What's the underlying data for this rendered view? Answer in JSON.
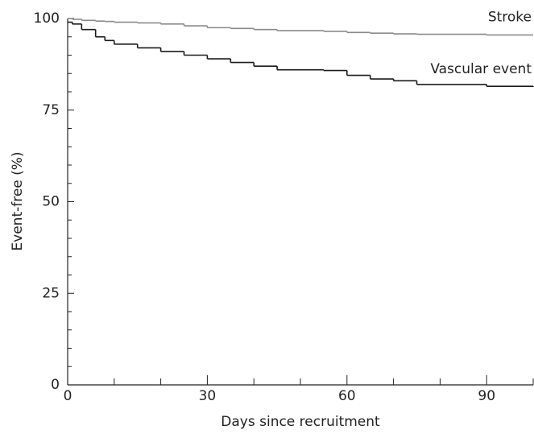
{
  "chart_data": {
    "type": "line",
    "drawstyle": "steps-post",
    "xlabel": "Days since recruitment",
    "ylabel": "Event-free (%)",
    "x": [
      0,
      1,
      3,
      6,
      8,
      10,
      15,
      20,
      25,
      30,
      35,
      40,
      45,
      55,
      60,
      65,
      70,
      75,
      90,
      100
    ],
    "series": [
      {
        "name": "Stroke",
        "color": "#8a8a8a",
        "values": [
          100,
          99.8,
          99.5,
          99.3,
          99.2,
          99,
          98.8,
          98.5,
          98,
          97.5,
          97.3,
          97,
          96.7,
          96.5,
          96.2,
          96,
          95.8,
          95.7,
          95.5,
          95.5
        ]
      },
      {
        "name": "Vascular event",
        "color": "#1a1a1a",
        "values": [
          99,
          98.5,
          97,
          95,
          94,
          93,
          92,
          91,
          90,
          89,
          88,
          87,
          86,
          85.8,
          84.5,
          83.5,
          83,
          82,
          81.5,
          81.3
        ]
      }
    ],
    "xlim": [
      0,
      100
    ],
    "xticks": [
      0,
      30,
      60,
      90
    ],
    "x_minor_ticks": [
      10,
      20,
      40,
      50,
      70,
      80,
      100
    ],
    "ylim": [
      0,
      100
    ],
    "yticks": [
      0,
      25,
      50,
      75,
      100
    ],
    "y_minor_ticks": [
      5,
      10,
      15,
      20,
      30,
      35,
      40,
      45,
      55,
      60,
      65,
      70,
      80,
      85,
      90,
      95
    ],
    "grid": false
  }
}
